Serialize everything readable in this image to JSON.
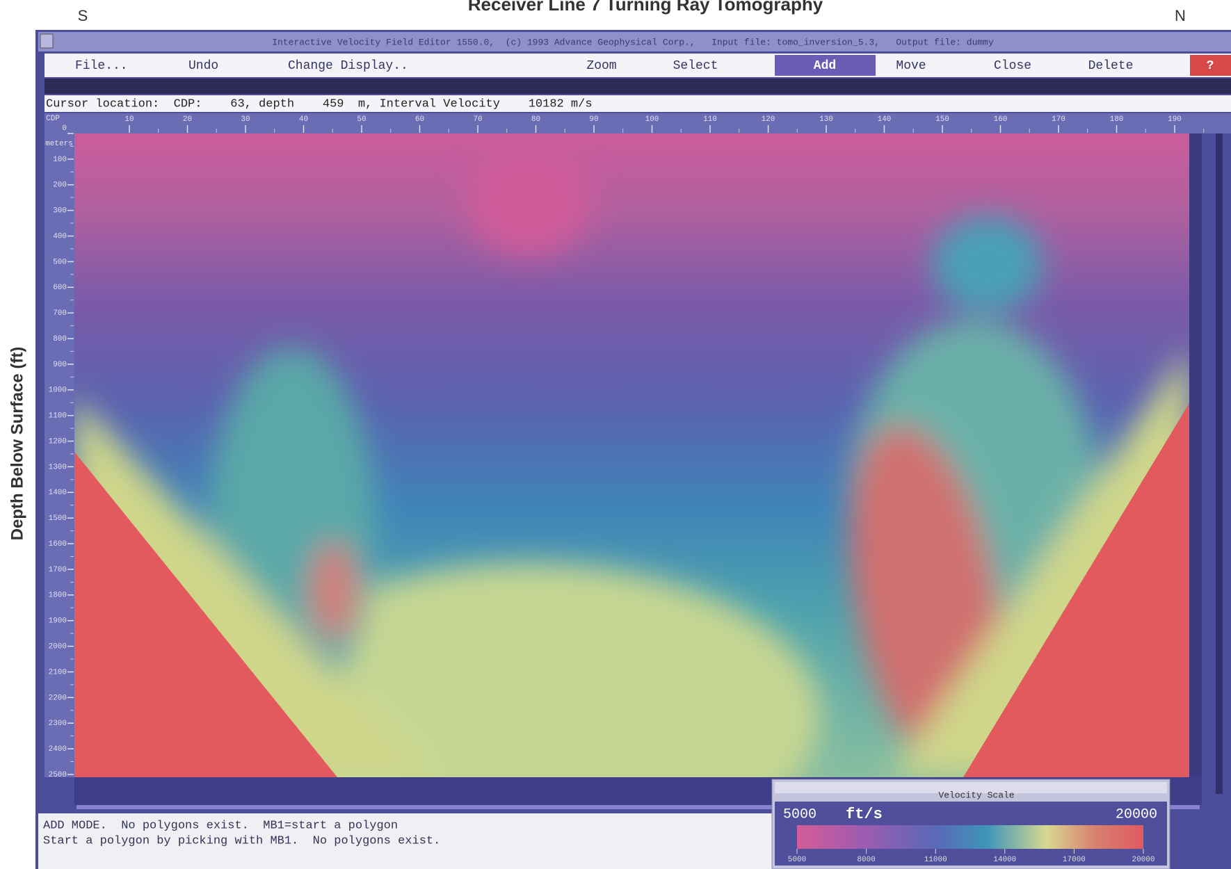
{
  "title": "Receiver Line 7 Turning Ray Tomography",
  "left_label": "S",
  "right_label": "N",
  "y_axis_label": "Depth Below Surface (ft)",
  "window": {
    "title": "Interactive Velocity Field Editor 1550.0,  (c) 1993 Advance Geophysical Corp.,   Input file: tomo_inversion_5.3,   Output file: dummy"
  },
  "menu": [
    "File...",
    "Undo",
    "Change Display..",
    "Zoom",
    "Select",
    "Add",
    "Move",
    "Close",
    "Delete",
    "?"
  ],
  "cursor": "Cursor location:  CDP:    63, depth    459  m, Interval Velocity    10182 m/s",
  "x_ruler": {
    "unit": "CDP",
    "ticks": [
      "10",
      "20",
      "30",
      "40",
      "50",
      "60",
      "70",
      "80",
      "90",
      "100",
      "110",
      "120",
      "130",
      "140",
      "150",
      "160",
      "170",
      "180",
      "190"
    ]
  },
  "y_ruler": {
    "unit": "meters",
    "ticks": [
      "0",
      "100",
      "200",
      "300",
      "400",
      "500",
      "600",
      "700",
      "800",
      "900",
      "1000",
      "1100",
      "1200",
      "1300",
      "1400",
      "1500",
      "1600",
      "1700",
      "1800",
      "1900",
      "2000",
      "2100",
      "2200",
      "2300",
      "2400",
      "2500"
    ]
  },
  "status": [
    "ADD MODE.  No polygons exist.  MB1=start a polygon",
    "Start a polygon by picking with MB1.  No polygons exist."
  ],
  "velocity_scale": {
    "title": "Velocity Scale",
    "min": "5000",
    "unit": "ft/s",
    "max": "20000",
    "ticks": [
      "5000",
      "8000",
      "11000",
      "14000",
      "17000",
      "20000"
    ]
  }
}
